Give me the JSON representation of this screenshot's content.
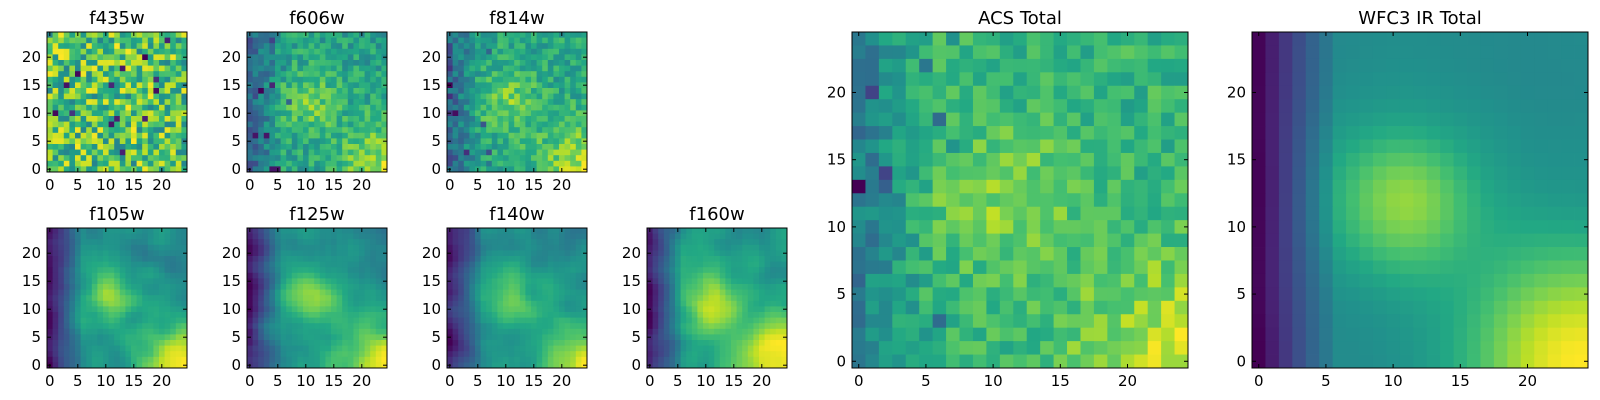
{
  "figure": {
    "description_colormap": "viridis"
  },
  "chart_data": [
    {
      "type": "heatmap",
      "title": "f435w",
      "size": 25,
      "xticks": [
        "0",
        "5",
        "10",
        "15",
        "20"
      ],
      "yticks": [
        "0",
        "5",
        "10",
        "15",
        "20"
      ],
      "pattern": "noise",
      "seed": 11
    },
    {
      "type": "heatmap",
      "title": "f606w",
      "size": 25,
      "xticks": [
        "0",
        "5",
        "10",
        "15",
        "20"
      ],
      "yticks": [
        "0",
        "5",
        "10",
        "15",
        "20"
      ],
      "pattern": "noise-blob",
      "seed": 23
    },
    {
      "type": "heatmap",
      "title": "f814w",
      "size": 25,
      "xticks": [
        "0",
        "5",
        "10",
        "15",
        "20"
      ],
      "yticks": [
        "0",
        "5",
        "10",
        "15",
        "20"
      ],
      "pattern": "noise-blob",
      "seed": 37
    },
    {
      "type": "heatmap",
      "title": "f105w",
      "size": 25,
      "xticks": [
        "0",
        "5",
        "10",
        "15",
        "20"
      ],
      "yticks": [
        "0",
        "5",
        "10",
        "15",
        "20"
      ],
      "pattern": "smooth",
      "seed": 41
    },
    {
      "type": "heatmap",
      "title": "f125w",
      "size": 25,
      "xticks": [
        "0",
        "5",
        "10",
        "15",
        "20"
      ],
      "yticks": [
        "0",
        "5",
        "10",
        "15",
        "20"
      ],
      "pattern": "smooth",
      "seed": 53
    },
    {
      "type": "heatmap",
      "title": "f140w",
      "size": 25,
      "xticks": [
        "0",
        "5",
        "10",
        "15",
        "20"
      ],
      "yticks": [
        "0",
        "5",
        "10",
        "15",
        "20"
      ],
      "pattern": "smooth",
      "seed": 67
    },
    {
      "type": "heatmap",
      "title": "f160w",
      "size": 25,
      "xticks": [
        "0",
        "5",
        "10",
        "15",
        "20"
      ],
      "yticks": [
        "0",
        "5",
        "10",
        "15",
        "20"
      ],
      "pattern": "smooth-dark-left",
      "seed": 79
    },
    {
      "type": "heatmap",
      "title": "ACS Total",
      "size": 25,
      "xticks": [
        "0",
        "5",
        "10",
        "15",
        "20"
      ],
      "yticks": [
        "0",
        "5",
        "10",
        "15",
        "20"
      ],
      "pattern": "noise-blob",
      "seed": 89
    },
    {
      "type": "heatmap",
      "title": "WFC3 IR Total",
      "size": 25,
      "xticks": [
        "0",
        "5",
        "10",
        "15",
        "20"
      ],
      "yticks": [
        "0",
        "5",
        "10",
        "15",
        "20"
      ],
      "pattern": "very-smooth",
      "seed": 97
    }
  ]
}
